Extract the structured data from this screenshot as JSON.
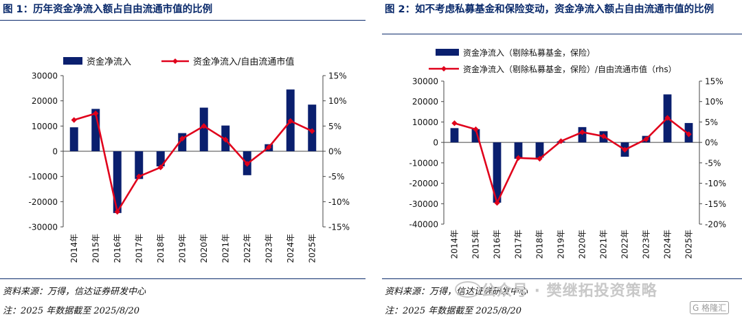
{
  "panels": [
    {
      "title": "图 1：历年资金净流入额占自由流通市值的比例",
      "source": "资料来源：万得，信达证券研发中心",
      "note": "注：2025 年数据截至 2025/8/20"
    },
    {
      "title": "图 2：如不考虑私募基金和保险变动，资金净流入额占自由流通市值的比例",
      "source": "资料来源：万得，信达证券研发中心",
      "note": "注：2025 年数据截至 2025/8/20"
    }
  ],
  "watermark": {
    "text": "公众号 · 樊继拓投资策略",
    "badge": "G 格隆汇"
  },
  "colors": {
    "bar": "#0a1f6e",
    "line": "#e0001b",
    "title": "#0a2a6b"
  },
  "chart_data": [
    {
      "type": "bar",
      "categories": [
        "2014年",
        "2015年",
        "2016年",
        "2017年",
        "2018年",
        "2019年",
        "2020年",
        "2021年",
        "2022年",
        "2023年",
        "2024年",
        "2025年"
      ],
      "series": [
        {
          "name": "资金净流入",
          "type": "bar",
          "axis": "left",
          "values": [
            9500,
            16800,
            -24500,
            -11000,
            -6000,
            7200,
            17300,
            10200,
            -9500,
            2800,
            24500,
            18500
          ]
        },
        {
          "name": "资金净流入/自由流通市值",
          "type": "line",
          "axis": "right",
          "values": [
            6.2,
            7.5,
            -12.0,
            -5.0,
            -3.2,
            2.5,
            5.0,
            2.3,
            -2.5,
            0.8,
            6.0,
            4.0
          ]
        }
      ],
      "ylim": [
        -30000,
        30000
      ],
      "yticks": [
        30000,
        20000,
        10000,
        0,
        -10000,
        -20000,
        -30000
      ],
      "yticks_labels": [
        "30000",
        "20000",
        "10000",
        "0",
        "-10000",
        "-20000",
        "-30000"
      ],
      "y2lim": [
        -15,
        15
      ],
      "y2ticks_labels": [
        "15%",
        "10%",
        "5%",
        "0%",
        "-5%",
        "-10%",
        "-15%"
      ],
      "legend": "top",
      "grid": false
    },
    {
      "type": "bar",
      "categories": [
        "2014年",
        "2015年",
        "2016年",
        "2017年",
        "2018年",
        "2019年",
        "2020年",
        "2021年",
        "2022年",
        "2023年",
        "2024年",
        "2025年"
      ],
      "series": [
        {
          "name": "资金净流入（剔除私募基金，保险）",
          "type": "bar",
          "axis": "left",
          "values": [
            7000,
            6500,
            -29500,
            -8000,
            -7500,
            500,
            7500,
            5500,
            -7000,
            3200,
            23500,
            9500
          ]
        },
        {
          "name": "资金净流入（剔除私募基金，保险）/自由流通市值（rhs）",
          "type": "line",
          "axis": "right",
          "values": [
            4.7,
            3.2,
            -14.8,
            -3.8,
            -4.0,
            0.3,
            2.5,
            1.5,
            -1.8,
            0.8,
            6.0,
            2.0
          ]
        }
      ],
      "ylim": [
        -40000,
        30000
      ],
      "yticks_labels": [
        "30000",
        "20000",
        "10000",
        "0",
        "-10000",
        "-20000",
        "-30000",
        "-40000"
      ],
      "y2lim": [
        -20,
        15
      ],
      "y2ticks_labels": [
        "15%",
        "10%",
        "5%",
        "0%",
        "-5%",
        "-10%",
        "-15%",
        "-20%"
      ],
      "legend": "top",
      "grid": false
    }
  ]
}
